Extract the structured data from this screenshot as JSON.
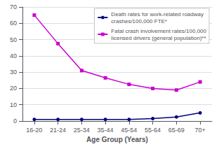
{
  "chart_data": {
    "type": "line",
    "categories": [
      "16-20",
      "21-24",
      "25-34",
      "35-44",
      "45-54",
      "55-64",
      "65-69",
      "70+"
    ],
    "series": [
      {
        "name": "Death rates for work-related roadway\ncrashes/100,000 FTE*",
        "color": "#00007F",
        "marker": "circle",
        "values": [
          1.0,
          1.0,
          1.0,
          1.0,
          1.0,
          1.5,
          2.5,
          5.0
        ]
      },
      {
        "name": "Fatal crash involvement rates/100,000\nlicensed drivers (general population)**",
        "color": "#CC00CC",
        "marker": "square",
        "values": [
          65.0,
          47.5,
          31.0,
          26.5,
          22.5,
          20.0,
          19.0,
          24.0
        ]
      }
    ],
    "xlabel": "Age Group (Years)",
    "ylim": [
      0,
      70
    ],
    "yticks": [
      0,
      10,
      20,
      30,
      40,
      50,
      60,
      70
    ],
    "grid": true,
    "legend": "upper right"
  }
}
